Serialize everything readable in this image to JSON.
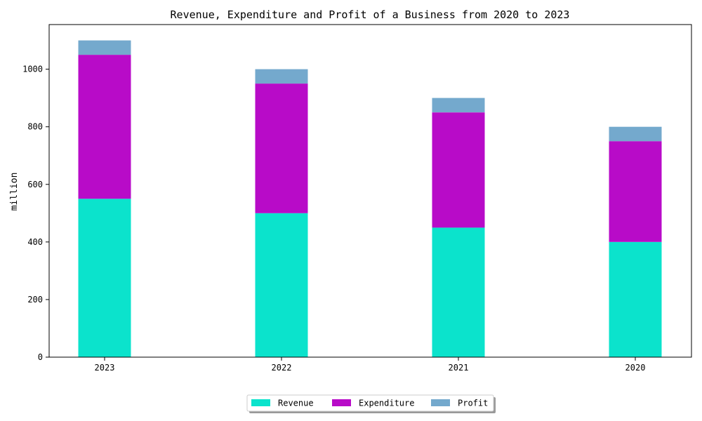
{
  "chart_data": {
    "type": "bar",
    "stacked": true,
    "title": "Revenue, Expenditure and Profit of a Business from 2020 to 2023",
    "xlabel": "",
    "ylabel": "million",
    "categories": [
      "2023",
      "2022",
      "2021",
      "2020"
    ],
    "series": [
      {
        "name": "Revenue",
        "values": [
          550,
          500,
          450,
          400
        ],
        "color": "#0be3cc"
      },
      {
        "name": "Expenditure",
        "values": [
          500,
          450,
          400,
          350
        ],
        "color": "#b80bc8"
      },
      {
        "name": "Profit",
        "values": [
          50,
          50,
          50,
          50
        ],
        "color": "#74a9cd"
      }
    ],
    "ylim": [
      0,
      1155
    ],
    "yticks": [
      0,
      200,
      400,
      600,
      800,
      1000
    ],
    "grid": false,
    "legend_position": "bottom-center"
  }
}
